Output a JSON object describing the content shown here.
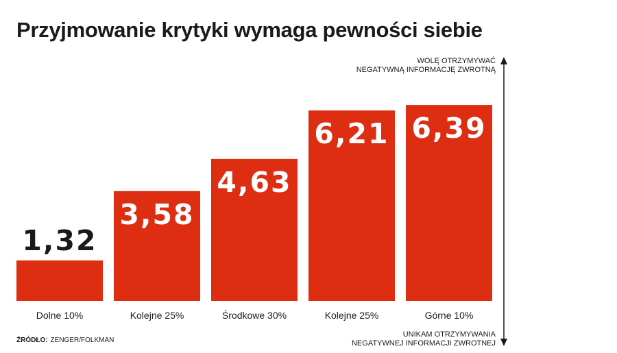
{
  "title": "Przyjmowanie krytyki wymaga pewności siebie",
  "axis_top_note": [
    "WOLĘ OTRZYMYWAĆ",
    "NEGATYWNĄ INFORMACJĘ ZWROTNĄ"
  ],
  "axis_bottom_note": [
    "UNIKAM OTRZYMYWANIA",
    "NEGATYWNEJ INFORMACJI ZWROTNEJ"
  ],
  "source_label": "ŹRÓDŁO:",
  "source_value": "ZENGER/FOLKMAN",
  "colors": {
    "bar": "#dd2e12",
    "value_inside": "#ffffff",
    "value_outside": "#1a1a1a"
  },
  "chart_data": {
    "type": "bar",
    "categories": [
      "Dolne 10%",
      "Kolejne 25%",
      "Środkowe 30%",
      "Kolejne 25%",
      "Górne 10%"
    ],
    "values": [
      1.32,
      3.58,
      4.63,
      6.21,
      6.39
    ],
    "value_labels": [
      "1,32",
      "3,58",
      "4,63",
      "6,21",
      "6,39"
    ],
    "title": "Przyjmowanie krytyki wymaga pewności siebie",
    "ylim": [
      0,
      6.8
    ],
    "grid": false
  }
}
